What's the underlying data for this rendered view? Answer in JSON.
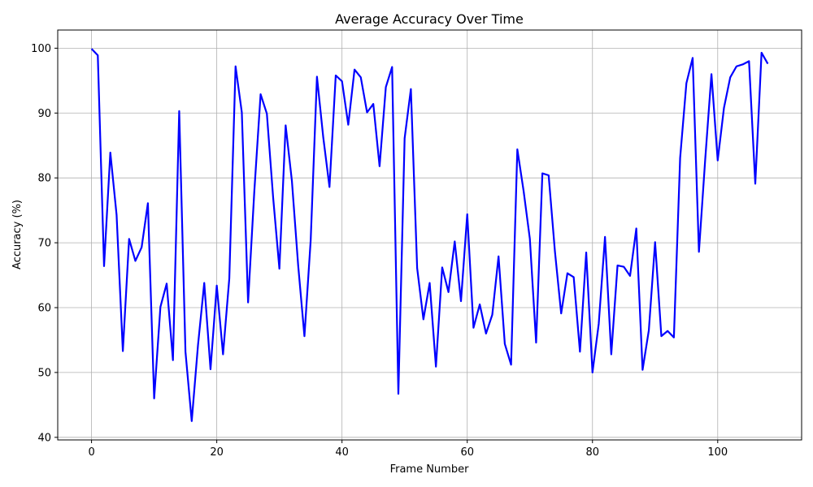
{
  "chart_data": {
    "type": "line",
    "title": "Average Accuracy Over Time",
    "xlabel": "Frame Number",
    "ylabel": "Accuracy (%)",
    "xlim": [
      -5.4,
      113.4
    ],
    "ylim": [
      39.6,
      102.8
    ],
    "xticks": [
      0,
      20,
      40,
      60,
      80,
      100
    ],
    "yticks": [
      40,
      50,
      60,
      70,
      80,
      90,
      100
    ],
    "grid": true,
    "line_color": "#0000ff",
    "series": [
      {
        "x": [
          0,
          1,
          2,
          3,
          4,
          5,
          6,
          7,
          8,
          9,
          10,
          11,
          12,
          13,
          14,
          15,
          16,
          17,
          18,
          19,
          20,
          21,
          22,
          23,
          24,
          25,
          26,
          27,
          28,
          29,
          30,
          31,
          32,
          33,
          34,
          35,
          36,
          37,
          38,
          39,
          40,
          41,
          42,
          43,
          44,
          45,
          46,
          47,
          48,
          49,
          50,
          51,
          52,
          53,
          54,
          55,
          56,
          57,
          58,
          59,
          60,
          61,
          62,
          63,
          64,
          65,
          66,
          67,
          68,
          69,
          70,
          71,
          72,
          73,
          74,
          75,
          76,
          77,
          78,
          79,
          80,
          81,
          82,
          83,
          84,
          85,
          86,
          87,
          88,
          89,
          90,
          91,
          92,
          93,
          94,
          95,
          96,
          97,
          98,
          99,
          100,
          101,
          102,
          103,
          104,
          105,
          106,
          107,
          108
        ],
        "values": [
          99.9,
          98.9,
          66.4,
          83.9,
          74.3,
          53.3,
          70.6,
          67.2,
          69.3,
          76.1,
          46.0,
          60.1,
          63.7,
          51.9,
          90.3,
          53.2,
          42.5,
          54.2,
          63.8,
          50.5,
          63.4,
          52.8,
          64.5,
          97.2,
          90.1,
          60.8,
          78.0,
          92.9,
          89.9,
          77.0,
          66.0,
          88.1,
          79.5,
          66.5,
          55.6,
          70.4,
          95.6,
          86.3,
          78.6,
          95.8,
          94.9,
          88.2,
          96.7,
          95.5,
          90.1,
          91.4,
          81.8,
          94.0,
          97.1,
          46.7,
          86.1,
          93.7,
          66.1,
          58.2,
          63.8,
          50.9,
          66.2,
          62.4,
          70.2,
          61.0,
          74.4,
          56.9,
          60.5,
          56.0,
          58.9,
          67.9,
          54.4,
          51.2,
          84.4,
          78.0,
          70.6,
          54.6,
          80.7,
          80.4,
          68.7,
          59.1,
          65.3,
          64.7,
          53.2,
          68.5,
          50.0,
          57.5,
          70.9,
          52.8,
          66.5,
          66.3,
          64.9,
          72.2,
          50.4,
          56.5,
          70.1,
          55.6,
          56.4,
          55.4,
          83.1,
          94.6,
          98.5,
          68.6,
          82.8,
          96.0,
          82.7,
          90.8,
          95.5,
          97.2,
          97.5,
          98.0,
          79.1,
          99.3,
          97.6
        ]
      }
    ]
  }
}
